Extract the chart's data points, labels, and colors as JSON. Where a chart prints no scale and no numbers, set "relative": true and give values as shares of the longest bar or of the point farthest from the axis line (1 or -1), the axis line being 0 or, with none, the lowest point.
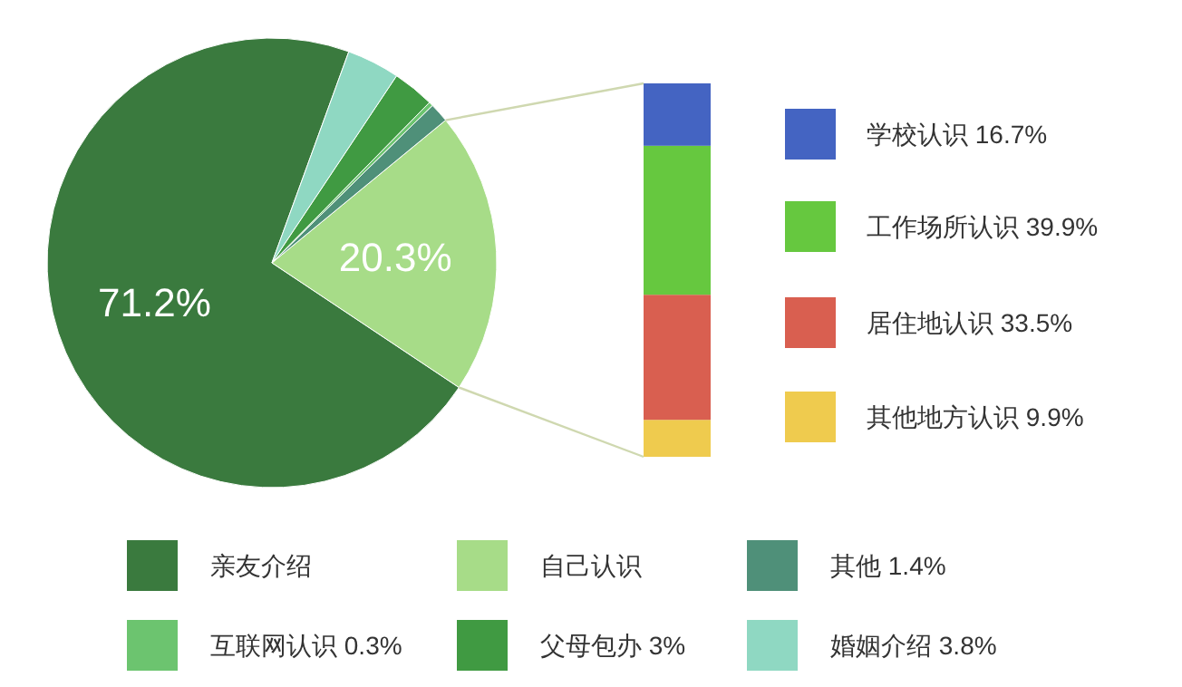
{
  "chart_data": [
    {
      "type": "pie",
      "categories": [
        "亲友介绍",
        "自己认识",
        "其他 1.4%",
        "互联网认识 0.3%",
        "父母包办 3%",
        "婚姻介绍 3.8%"
      ],
      "values": [
        71.2,
        20.3,
        1.4,
        0.3,
        3,
        3.8
      ],
      "colors": [
        "#3a7a3e",
        "#a7dc88",
        "#4f9079",
        "#6cc46f",
        "#409a42",
        "#8fd8c2"
      ],
      "value_labels": [
        "71.2%",
        "20.3%",
        null,
        null,
        null,
        null
      ],
      "legend": "bottom"
    },
    {
      "type": "bar",
      "stacked": true,
      "relative": true,
      "categories": [
        null
      ],
      "legend": "right",
      "series": [
        {
          "name": "其他地方认识 9.9%",
          "color": "#efcb4e",
          "values": [
            0.099
          ]
        },
        {
          "name": "居住地认识 33.5%",
          "color": "#d95f50",
          "values": [
            0.335
          ]
        },
        {
          "name": "工作场所认识 39.9%",
          "color": "#66c83f",
          "values": [
            0.399
          ]
        },
        {
          "name": "学校认识 16.7%",
          "color": "#4464c2",
          "values": [
            0.167
          ]
        }
      ]
    }
  ]
}
